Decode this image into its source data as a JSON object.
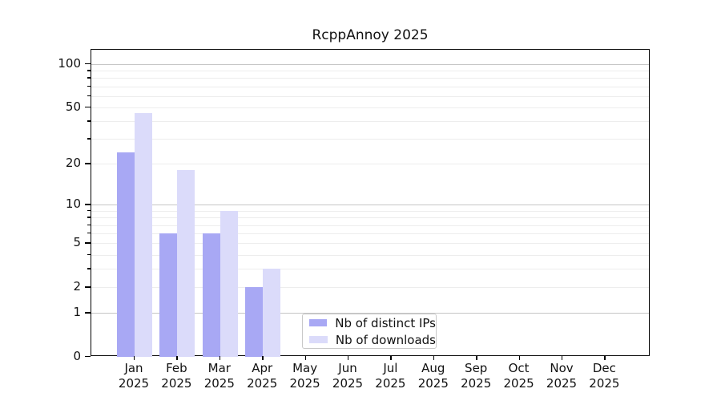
{
  "chart_data": {
    "type": "bar",
    "title": "RcppAnnoy 2025",
    "categories": [
      "Jan",
      "Feb",
      "Mar",
      "Apr",
      "May",
      "Jun",
      "Jul",
      "Aug",
      "Sep",
      "Oct",
      "Nov",
      "Dec"
    ],
    "year_label": "2025",
    "series": [
      {
        "name": "Nb of distinct IPs",
        "color": "#a8a8f4",
        "values": [
          24,
          6,
          6,
          2,
          0,
          0,
          0,
          0,
          0,
          0,
          0,
          0
        ]
      },
      {
        "name": "Nb of downloads",
        "color": "#dbdbfa",
        "values": [
          46,
          18,
          9,
          3,
          0,
          0,
          0,
          0,
          0,
          0,
          0,
          0
        ]
      }
    ],
    "ylabel": "",
    "xlabel": "",
    "y_scale": "log1p",
    "y_major_ticks": [
      0,
      1,
      2,
      5,
      10,
      20,
      50,
      100
    ],
    "y_minor_ticks": [
      3,
      4,
      6,
      7,
      8,
      9,
      30,
      40,
      60,
      70,
      80,
      90
    ],
    "y_decade_lines": [
      1,
      10,
      100
    ],
    "ylim": [
      0,
      130
    ],
    "grid": "on",
    "legend_position": "bottom-center"
  }
}
